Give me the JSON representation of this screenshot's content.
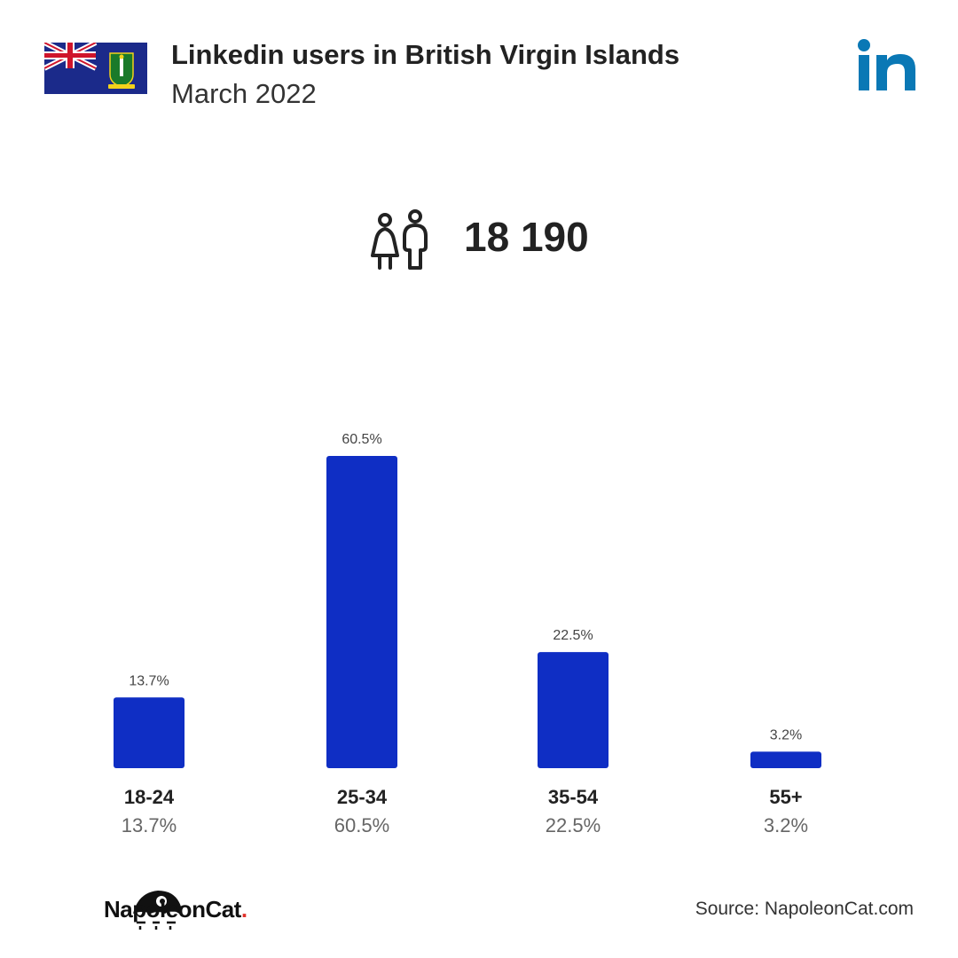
{
  "header": {
    "title": "Linkedin users in British Virgin Islands",
    "subtitle": "March 2022",
    "flag_icon": "british-virgin-islands-flag-icon",
    "platform_icon": "linkedin-logo-icon"
  },
  "summary": {
    "icon": "users-icon",
    "total_users": "18 190"
  },
  "chart_data": {
    "type": "bar",
    "title": "Linkedin users in British Virgin Islands",
    "categories": [
      "18-24",
      "25-34",
      "35-54",
      "55+"
    ],
    "values": [
      13.7,
      60.5,
      22.5,
      3.2
    ],
    "value_labels": [
      "13.7%",
      "60.5%",
      "22.5%",
      "3.2%"
    ],
    "unit": "%",
    "xlabel": "",
    "ylabel": "",
    "ylim": [
      0,
      60.5
    ],
    "grid": false,
    "legend": "none",
    "bar_color": "#0f2ec4"
  },
  "footer": {
    "brand": "NapoleonCat",
    "brand_dot": ".",
    "brand_icon": "napoleoncat-logo-icon",
    "source": "Source: NapoleonCat.com"
  },
  "colors": {
    "bar": "#0f2ec4",
    "linkedin_blue": "#0a78b5",
    "brand_red": "#e0312b",
    "text_dark": "#222222",
    "text_muted": "#666666"
  }
}
